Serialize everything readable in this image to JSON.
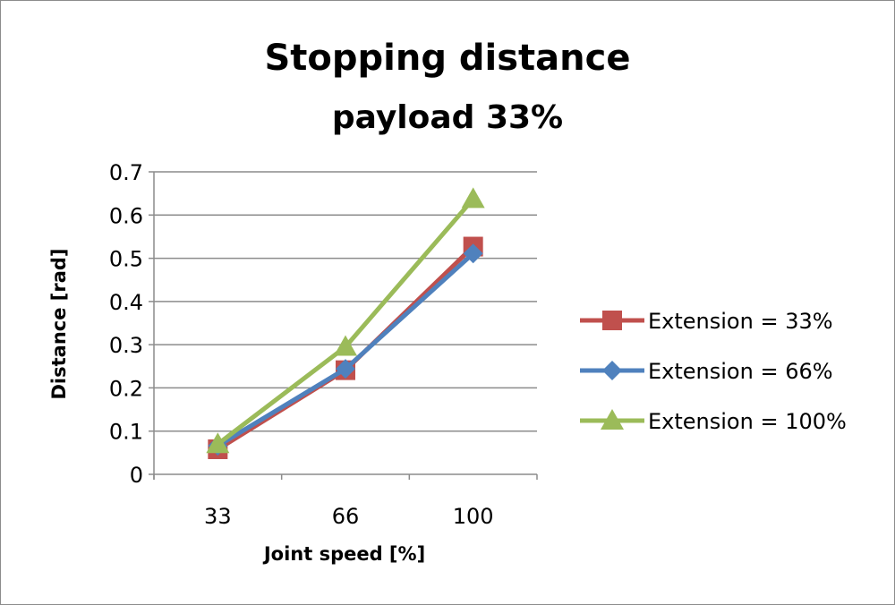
{
  "chart_data": {
    "type": "line",
    "title": "Stopping distance",
    "subtitle": "payload 33%",
    "xlabel": "Joint speed [%]",
    "ylabel": "Distance [rad]",
    "categories": [
      "33",
      "66",
      "100"
    ],
    "ylim": [
      0,
      0.7
    ],
    "yticks": [
      "0",
      "0.1",
      "0.2",
      "0.3",
      "0.4",
      "0.5",
      "0.6",
      "0.7"
    ],
    "grid": true,
    "legend_position": "right",
    "series": [
      {
        "name": "Extension = 33%",
        "values": [
          0.058,
          0.241,
          0.527
        ],
        "color": "#c0504d",
        "marker": "square"
      },
      {
        "name": "Extension = 66%",
        "values": [
          0.066,
          0.244,
          0.511
        ],
        "color": "#4f81bd",
        "marker": "diamond"
      },
      {
        "name": "Extension = 100%",
        "values": [
          0.07,
          0.295,
          0.637
        ],
        "color": "#9bbb59",
        "marker": "triangle"
      }
    ]
  }
}
